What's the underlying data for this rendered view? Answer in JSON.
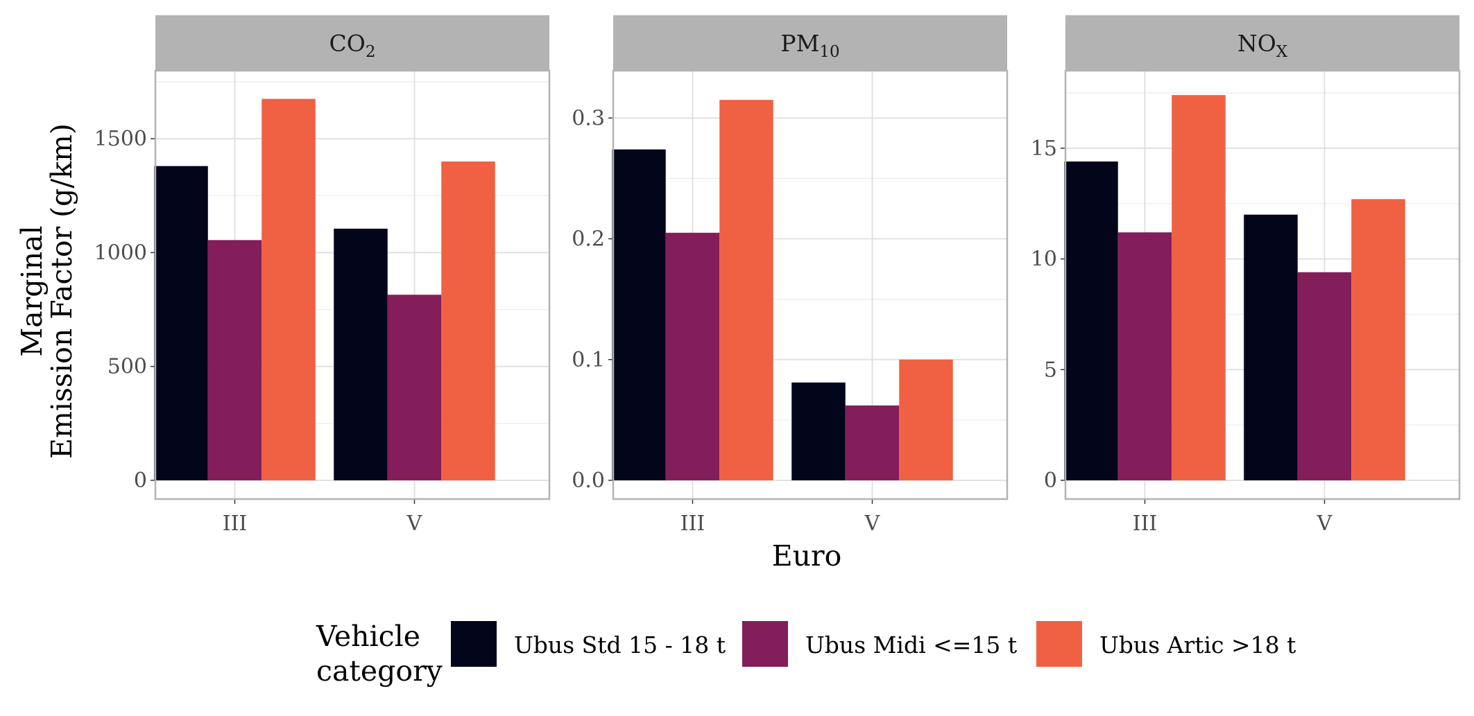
{
  "chart_data": {
    "type": "bar",
    "layout": "faceted",
    "xlabel": "Euro",
    "ylabel_lines": [
      "Marginal",
      "Emission Factor (g/km)"
    ],
    "categories": [
      "III",
      "V"
    ],
    "legend": {
      "title_lines": [
        "Vehicle",
        "category"
      ],
      "placement": "bottom"
    },
    "series": [
      {
        "name": "Ubus Std 15 - 18 t",
        "color": "#03051a"
      },
      {
        "name": "Ubus Midi <=15 t",
        "color": "#841e5a"
      },
      {
        "name": "Ubus Artic >18 t",
        "color": "#f06043"
      }
    ],
    "panels": [
      {
        "title": "CO",
        "title_sub": "2",
        "ylim": [
          0,
          1750
        ],
        "yticks": [
          0,
          500,
          1000,
          1500
        ],
        "ytick_labels": [
          "0",
          "500",
          "1000",
          "1500"
        ],
        "values": [
          [
            1380,
            1105
          ],
          [
            1055,
            815
          ],
          [
            1675,
            1400
          ]
        ]
      },
      {
        "title": "PM",
        "title_sub": "10",
        "ylim": [
          0,
          0.33
        ],
        "yticks": [
          0,
          0.1,
          0.2,
          0.3
        ],
        "ytick_labels": [
          "0.0",
          "0.1",
          "0.2",
          "0.3"
        ],
        "values": [
          [
            0.274,
            0.081
          ],
          [
            0.205,
            0.062
          ],
          [
            0.315,
            0.1
          ]
        ]
      },
      {
        "title": "NO",
        "title_sub": "X",
        "ylim": [
          0,
          18
        ],
        "yticks": [
          0,
          5,
          10,
          15
        ],
        "ytick_labels": [
          "0",
          "5",
          "10",
          "15"
        ],
        "values": [
          [
            14.4,
            12.0
          ],
          [
            11.2,
            9.4
          ],
          [
            17.4,
            12.7
          ]
        ]
      }
    ],
    "grid": true
  }
}
